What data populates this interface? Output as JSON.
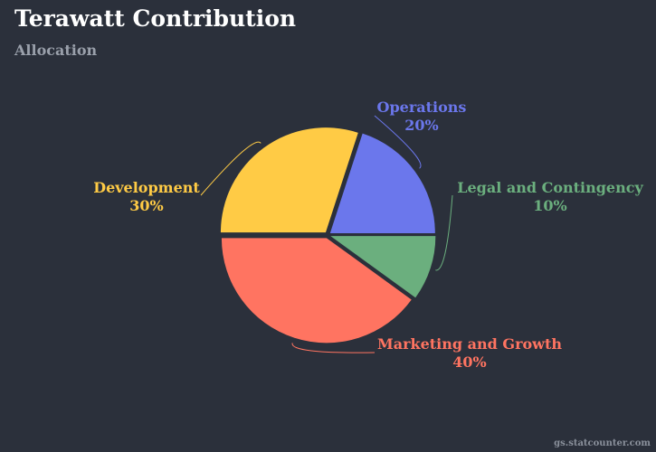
{
  "header": {
    "title": "Terawatt Contribution",
    "subtitle": "Allocation"
  },
  "credit": "gs.statcounter.com",
  "chart_data": {
    "type": "pie",
    "title": "Terawatt Contribution",
    "subtitle": "Allocation",
    "slices": [
      {
        "name": "Legal and Contingency",
        "value": 10,
        "label": "10%",
        "color": "#6baf7e"
      },
      {
        "name": "Marketing and Growth",
        "value": 40,
        "label": "40%",
        "color": "#ff7461"
      },
      {
        "name": "Development",
        "value": 30,
        "label": "30%",
        "color": "#ffcb45"
      },
      {
        "name": "Operations",
        "value": 20,
        "label": "20%",
        "color": "#6b77ec"
      }
    ],
    "start_angle_deg": 0,
    "background": "#2b303b"
  }
}
